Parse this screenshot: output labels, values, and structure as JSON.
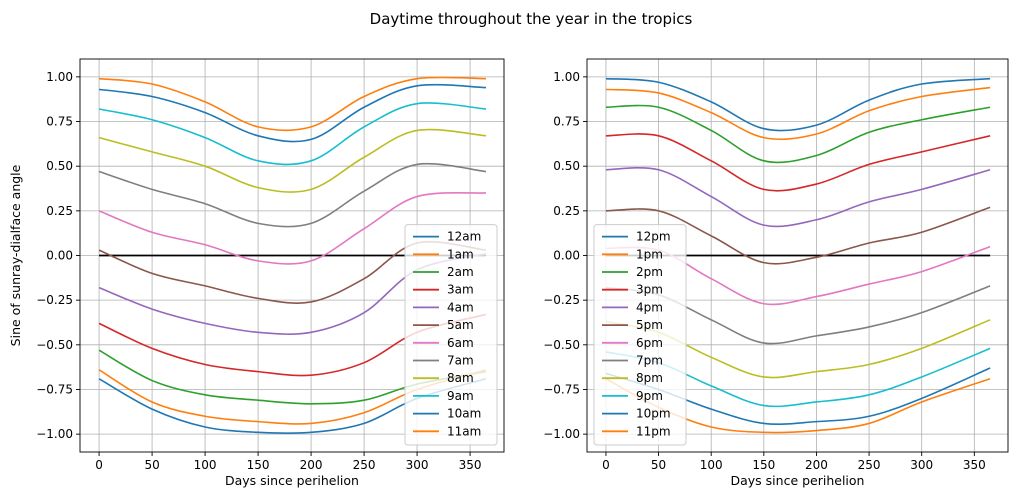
{
  "figure": {
    "title": "Daytime throughout the year in the tropics"
  },
  "chart_data": [
    {
      "type": "line",
      "xlabel": "Days since perihelion",
      "ylabel": "Sine of sunray-dialface angle",
      "xlim": [
        -18,
        382
      ],
      "ylim": [
        -1.1,
        1.1
      ],
      "xticks": [
        0,
        50,
        100,
        150,
        200,
        250,
        300,
        350
      ],
      "yticks": [
        -1.0,
        -0.75,
        -0.5,
        -0.25,
        0.0,
        0.25,
        0.5,
        0.75,
        1.0
      ],
      "ytick_labels": [
        "−1.00",
        "−0.75",
        "−0.50",
        "−0.25",
        "0.00",
        "0.25",
        "0.50",
        "0.75",
        "1.00"
      ],
      "grid": true,
      "legend": "lower-right",
      "x": [
        0,
        50,
        100,
        150,
        200,
        250,
        300,
        365
      ],
      "reference_line": {
        "x": [
          0,
          365
        ],
        "y": [
          0,
          0
        ],
        "color": "#000000"
      },
      "series": [
        {
          "name": "12am",
          "color": "#1f77b4",
          "values": [
            0.93,
            0.89,
            0.8,
            0.67,
            0.65,
            0.83,
            0.95,
            0.94
          ]
        },
        {
          "name": "1am",
          "color": "#ff7f0e",
          "values": [
            0.99,
            0.96,
            0.86,
            0.72,
            0.72,
            0.89,
            0.99,
            0.99
          ]
        },
        {
          "name": "2am",
          "color": "#2ca02c",
          "values": [
            -0.53,
            -0.7,
            -0.78,
            -0.81,
            -0.83,
            -0.81,
            -0.72,
            -0.65
          ]
        },
        {
          "name": "3am",
          "color": "#d62728",
          "values": [
            -0.38,
            -0.52,
            -0.61,
            -0.65,
            -0.67,
            -0.6,
            -0.43,
            -0.33
          ]
        },
        {
          "name": "4am",
          "color": "#9467bd",
          "values": [
            -0.18,
            -0.3,
            -0.38,
            -0.43,
            -0.43,
            -0.32,
            -0.08,
            0.01
          ]
        },
        {
          "name": "5am",
          "color": "#8c564b",
          "values": [
            0.03,
            -0.1,
            -0.17,
            -0.24,
            -0.26,
            -0.13,
            0.07,
            0.03
          ]
        },
        {
          "name": "6am",
          "color": "#e377c2",
          "values": [
            0.25,
            0.13,
            0.06,
            -0.03,
            -0.03,
            0.15,
            0.33,
            0.35
          ]
        },
        {
          "name": "7am",
          "color": "#7f7f7f",
          "values": [
            0.47,
            0.37,
            0.29,
            0.18,
            0.18,
            0.36,
            0.51,
            0.47
          ]
        },
        {
          "name": "8am",
          "color": "#bcbd22",
          "values": [
            0.66,
            0.58,
            0.5,
            0.38,
            0.37,
            0.55,
            0.7,
            0.67
          ]
        },
        {
          "name": "9am",
          "color": "#17becf",
          "values": [
            0.82,
            0.76,
            0.66,
            0.53,
            0.53,
            0.72,
            0.85,
            0.82
          ]
        },
        {
          "name": "10am",
          "color": "#1f77b4",
          "values": [
            -0.69,
            -0.86,
            -0.96,
            -0.99,
            -0.99,
            -0.94,
            -0.8,
            -0.69
          ]
        },
        {
          "name": "11am",
          "color": "#ff7f0e",
          "values": [
            -0.64,
            -0.82,
            -0.9,
            -0.93,
            -0.94,
            -0.88,
            -0.75,
            -0.64
          ]
        }
      ]
    },
    {
      "type": "line",
      "xlabel": "Days since perihelion",
      "ylabel": "",
      "xlim": [
        -18,
        382
      ],
      "ylim": [
        -1.1,
        1.1
      ],
      "xticks": [
        0,
        50,
        100,
        150,
        200,
        250,
        300,
        350
      ],
      "yticks": [
        -1.0,
        -0.75,
        -0.5,
        -0.25,
        0.0,
        0.25,
        0.5,
        0.75,
        1.0
      ],
      "ytick_labels": [
        "−1.00",
        "−0.75",
        "−0.50",
        "−0.25",
        "0.00",
        "0.25",
        "0.50",
        "0.75",
        "1.00"
      ],
      "grid": true,
      "legend": "lower-left",
      "x": [
        0,
        50,
        100,
        150,
        200,
        250,
        300,
        365
      ],
      "reference_line": {
        "x": [
          0,
          365
        ],
        "y": [
          0,
          0
        ],
        "color": "#000000"
      },
      "series": [
        {
          "name": "12pm",
          "color": "#1f77b4",
          "values": [
            0.99,
            0.97,
            0.86,
            0.71,
            0.73,
            0.87,
            0.96,
            0.99
          ]
        },
        {
          "name": "1pm",
          "color": "#ff7f0e",
          "values": [
            0.93,
            0.91,
            0.8,
            0.66,
            0.68,
            0.81,
            0.89,
            0.94
          ]
        },
        {
          "name": "2pm",
          "color": "#2ca02c",
          "values": [
            0.83,
            0.83,
            0.7,
            0.53,
            0.56,
            0.69,
            0.76,
            0.83
          ]
        },
        {
          "name": "3pm",
          "color": "#d62728",
          "values": [
            0.67,
            0.67,
            0.53,
            0.37,
            0.4,
            0.51,
            0.58,
            0.67
          ]
        },
        {
          "name": "4pm",
          "color": "#9467bd",
          "values": [
            0.48,
            0.48,
            0.33,
            0.17,
            0.2,
            0.3,
            0.37,
            0.48
          ]
        },
        {
          "name": "5pm",
          "color": "#8c564b",
          "values": [
            0.25,
            0.25,
            0.11,
            -0.04,
            -0.01,
            0.07,
            0.13,
            0.27
          ]
        },
        {
          "name": "6pm",
          "color": "#e377c2",
          "values": [
            0.04,
            0.03,
            -0.13,
            -0.27,
            -0.23,
            -0.16,
            -0.09,
            0.05
          ]
        },
        {
          "name": "7pm",
          "color": "#7f7f7f",
          "values": [
            -0.18,
            -0.22,
            -0.36,
            -0.49,
            -0.45,
            -0.4,
            -0.32,
            -0.17
          ]
        },
        {
          "name": "8pm",
          "color": "#bcbd22",
          "values": [
            -0.37,
            -0.43,
            -0.57,
            -0.68,
            -0.65,
            -0.61,
            -0.52,
            -0.36
          ]
        },
        {
          "name": "9pm",
          "color": "#17becf",
          "values": [
            -0.54,
            -0.6,
            -0.73,
            -0.84,
            -0.82,
            -0.78,
            -0.68,
            -0.52
          ]
        },
        {
          "name": "10pm",
          "color": "#1f77b4",
          "values": [
            -0.66,
            -0.75,
            -0.86,
            -0.94,
            -0.93,
            -0.9,
            -0.8,
            -0.63
          ]
        },
        {
          "name": "11pm",
          "color": "#ff7f0e",
          "values": [
            -0.69,
            -0.85,
            -0.96,
            -0.99,
            -0.98,
            -0.94,
            -0.82,
            -0.69
          ]
        }
      ]
    }
  ]
}
